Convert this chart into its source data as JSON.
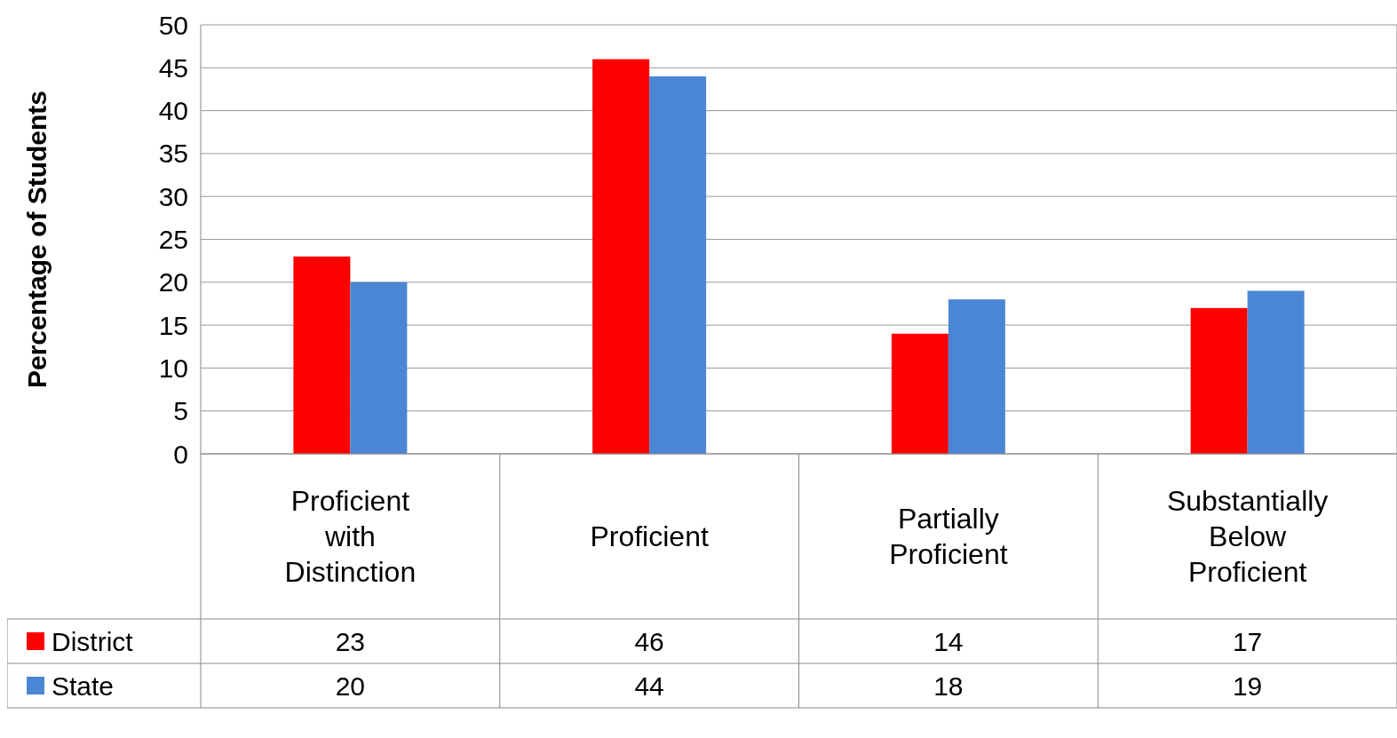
{
  "chart_data": {
    "type": "bar",
    "ylabel": "Percentage of Students",
    "categories": [
      "Proficient with Distinction",
      "Proficient",
      "Partially Proficient",
      "Substantially Below Proficient"
    ],
    "series": [
      {
        "name": "District",
        "color": "#ff0000",
        "values": [
          23,
          46,
          14,
          17
        ]
      },
      {
        "name": "State",
        "color": "#4a86d4",
        "values": [
          20,
          44,
          18,
          19
        ]
      }
    ],
    "ylim": [
      0,
      50
    ],
    "yticks": [
      0,
      5,
      10,
      15,
      20,
      25,
      30,
      35,
      40,
      45,
      50
    ],
    "grid": "y",
    "legend": "bottom",
    "data_labels": true
  }
}
